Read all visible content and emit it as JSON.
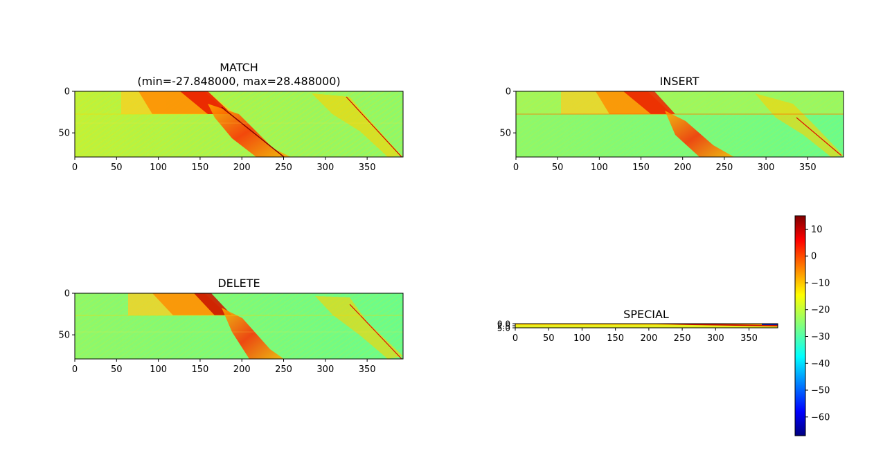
{
  "chart_data": [
    {
      "type": "heatmap",
      "title": "MATCH",
      "subtitle": "(min=-27.848000, max=28.488000)",
      "xlabel": "",
      "ylabel": "",
      "x_ticks": [
        "0",
        "50",
        "100",
        "150",
        "200",
        "250",
        "300",
        "350"
      ],
      "y_ticks": [
        "0",
        "50"
      ],
      "xlim": [
        0,
        393
      ],
      "ylim": [
        79,
        0
      ],
      "value_min": -27.848,
      "value_max": 28.488,
      "grid": false
    },
    {
      "type": "heatmap",
      "title": "INSERT",
      "xlabel": "",
      "ylabel": "",
      "x_ticks": [
        "0",
        "50",
        "100",
        "150",
        "200",
        "250",
        "300",
        "350"
      ],
      "y_ticks": [
        "0",
        "50"
      ],
      "xlim": [
        0,
        393
      ],
      "ylim": [
        79,
        0
      ],
      "grid": false
    },
    {
      "type": "heatmap",
      "title": "DELETE",
      "xlabel": "",
      "ylabel": "",
      "x_ticks": [
        "0",
        "50",
        "100",
        "150",
        "200",
        "250",
        "300",
        "350"
      ],
      "y_ticks": [
        "0",
        "50"
      ],
      "xlim": [
        0,
        393
      ],
      "ylim": [
        79,
        0
      ],
      "grid": false
    },
    {
      "type": "heatmap",
      "title": "SPECIAL",
      "xlabel": "",
      "ylabel": "",
      "x_ticks": [
        "0",
        "50",
        "100",
        "150",
        "200",
        "250",
        "300",
        "350"
      ],
      "y_ticks": [
        "0.0",
        "2.5",
        "5.0"
      ],
      "xlim": [
        0,
        393
      ],
      "ylim": [
        5,
        0
      ],
      "grid": false
    }
  ],
  "colorbar": {
    "colormap": "jet",
    "range": [
      -67,
      15
    ],
    "ticks": [
      "10",
      "0",
      "−10",
      "−20",
      "−30",
      "−40",
      "−50",
      "−60"
    ],
    "tick_values": [
      10,
      0,
      -10,
      -20,
      -30,
      -40,
      -50,
      -60
    ]
  }
}
